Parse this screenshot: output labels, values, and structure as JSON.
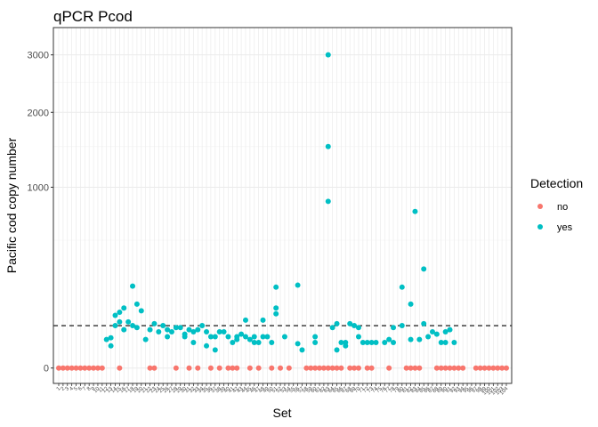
{
  "chart_data": {
    "type": "scatter",
    "title": "qPCR Pcod",
    "xlabel": "Set",
    "ylabel": "Pacific cod copy number",
    "y_scale": "sqrt",
    "ylim": [
      0,
      3200
    ],
    "y_ticks": [
      0,
      1000,
      2000,
      3000
    ],
    "y_tick_labels": [
      "0",
      "1000",
      "2000",
      "3000"
    ],
    "x_ticks": [
      "1",
      "2",
      "3",
      "4",
      "5",
      "6",
      "7",
      "8",
      "9",
      "10",
      "11",
      "12",
      "13",
      "14",
      "15",
      "16",
      "17",
      "18",
      "19",
      "20",
      "21",
      "22",
      "23",
      "24",
      "25",
      "26",
      "27",
      "28",
      "29",
      "30",
      "31",
      "32",
      "33",
      "34",
      "35",
      "36",
      "37",
      "38",
      "39",
      "40",
      "41",
      "42",
      "43",
      "44",
      "45",
      "46",
      "47",
      "48",
      "49",
      "50",
      "51",
      "52",
      "53",
      "54",
      "55",
      "56",
      "57",
      "58",
      "59",
      "60",
      "61",
      "62",
      "63",
      "64",
      "65",
      "66",
      "67",
      "68",
      "69",
      "70",
      "71",
      "72",
      "73",
      "74",
      "75",
      "76",
      "77",
      "78",
      "79",
      "80",
      "81",
      "82",
      "83",
      "84",
      "85",
      "86",
      "87",
      "88",
      "89",
      "90",
      "91",
      "92",
      "93",
      "94",
      "95",
      "96",
      "97",
      "98",
      "99",
      "100",
      "101",
      "102",
      "103",
      "104"
    ],
    "threshold": 55,
    "grid": true,
    "legend": {
      "title": "Detection",
      "position": "right",
      "entries": [
        "no",
        "yes"
      ]
    },
    "colors": {
      "no": "#F8766D",
      "yes": "#00BFC4"
    },
    "series": [
      {
        "name": "no",
        "points": [
          [
            1,
            0
          ],
          [
            2,
            0
          ],
          [
            3,
            0
          ],
          [
            4,
            0
          ],
          [
            5,
            0
          ],
          [
            6,
            0
          ],
          [
            7,
            0
          ],
          [
            8,
            0
          ],
          [
            9,
            0
          ],
          [
            10,
            0
          ],
          [
            11,
            0
          ],
          [
            15,
            0
          ],
          [
            22,
            0
          ],
          [
            23,
            0
          ],
          [
            28,
            0
          ],
          [
            31,
            0
          ],
          [
            33,
            0
          ],
          [
            36,
            0
          ],
          [
            38,
            0
          ],
          [
            40,
            0
          ],
          [
            41,
            0
          ],
          [
            42,
            0
          ],
          [
            45,
            0
          ],
          [
            47,
            0
          ],
          [
            50,
            0
          ],
          [
            52,
            0
          ],
          [
            54,
            0
          ],
          [
            58,
            0
          ],
          [
            59,
            0
          ],
          [
            60,
            0
          ],
          [
            61,
            0
          ],
          [
            62,
            0
          ],
          [
            63,
            0
          ],
          [
            64,
            0
          ],
          [
            65,
            0
          ],
          [
            66,
            0
          ],
          [
            68,
            0
          ],
          [
            69,
            0
          ],
          [
            70,
            0
          ],
          [
            72,
            0
          ],
          [
            73,
            0
          ],
          [
            77,
            0
          ],
          [
            81,
            0
          ],
          [
            82,
            0
          ],
          [
            83,
            0
          ],
          [
            84,
            0
          ],
          [
            88,
            0
          ],
          [
            89,
            0
          ],
          [
            90,
            0
          ],
          [
            91,
            0
          ],
          [
            92,
            0
          ],
          [
            93,
            0
          ],
          [
            94,
            0
          ],
          [
            97,
            0
          ],
          [
            98,
            0
          ],
          [
            99,
            0
          ],
          [
            100,
            0
          ],
          [
            101,
            0
          ],
          [
            102,
            0
          ],
          [
            103,
            0
          ],
          [
            104,
            0
          ]
        ]
      },
      {
        "name": "yes",
        "points": [
          [
            12,
            25
          ],
          [
            13,
            15
          ],
          [
            13,
            28
          ],
          [
            14,
            85
          ],
          [
            14,
            55
          ],
          [
            15,
            95
          ],
          [
            15,
            65
          ],
          [
            16,
            110
          ],
          [
            16,
            45
          ],
          [
            17,
            65
          ],
          [
            18,
            205
          ],
          [
            18,
            55
          ],
          [
            19,
            50
          ],
          [
            19,
            125
          ],
          [
            20,
            100
          ],
          [
            21,
            25
          ],
          [
            22,
            45
          ],
          [
            23,
            60
          ],
          [
            24,
            40
          ],
          [
            25,
            55
          ],
          [
            26,
            30
          ],
          [
            26,
            45
          ],
          [
            27,
            40
          ],
          [
            28,
            50
          ],
          [
            29,
            50
          ],
          [
            30,
            35
          ],
          [
            30,
            30
          ],
          [
            31,
            45
          ],
          [
            32,
            20
          ],
          [
            32,
            40
          ],
          [
            33,
            45
          ],
          [
            34,
            55
          ],
          [
            35,
            15
          ],
          [
            35,
            40
          ],
          [
            36,
            30
          ],
          [
            37,
            10
          ],
          [
            37,
            30
          ],
          [
            38,
            40
          ],
          [
            39,
            40
          ],
          [
            40,
            30
          ],
          [
            41,
            20
          ],
          [
            42,
            25
          ],
          [
            42,
            30
          ],
          [
            43,
            35
          ],
          [
            44,
            30
          ],
          [
            44,
            70
          ],
          [
            45,
            25
          ],
          [
            46,
            20
          ],
          [
            46,
            30
          ],
          [
            47,
            20
          ],
          [
            48,
            30
          ],
          [
            48,
            70
          ],
          [
            49,
            30
          ],
          [
            50,
            20
          ],
          [
            51,
            200
          ],
          [
            51,
            110
          ],
          [
            51,
            90
          ],
          [
            53,
            30
          ],
          [
            56,
            210
          ],
          [
            56,
            18
          ],
          [
            57,
            10
          ],
          [
            60,
            20
          ],
          [
            60,
            30
          ],
          [
            63,
            3000
          ],
          [
            63,
            1500
          ],
          [
            63,
            850
          ],
          [
            64,
            50
          ],
          [
            65,
            10
          ],
          [
            65,
            60
          ],
          [
            66,
            20
          ],
          [
            67,
            15
          ],
          [
            67,
            20
          ],
          [
            68,
            60
          ],
          [
            69,
            55
          ],
          [
            70,
            30
          ],
          [
            70,
            50
          ],
          [
            71,
            20
          ],
          [
            72,
            20
          ],
          [
            73,
            20
          ],
          [
            74,
            20
          ],
          [
            76,
            20
          ],
          [
            77,
            25
          ],
          [
            78,
            20
          ],
          [
            78,
            50
          ],
          [
            80,
            200
          ],
          [
            80,
            55
          ],
          [
            82,
            25
          ],
          [
            82,
            125
          ],
          [
            83,
            750
          ],
          [
            84,
            25
          ],
          [
            85,
            300
          ],
          [
            85,
            60
          ],
          [
            86,
            30
          ],
          [
            87,
            40
          ],
          [
            88,
            35
          ],
          [
            89,
            20
          ],
          [
            90,
            20
          ],
          [
            90,
            40
          ],
          [
            91,
            45
          ],
          [
            92,
            20
          ]
        ]
      }
    ]
  }
}
